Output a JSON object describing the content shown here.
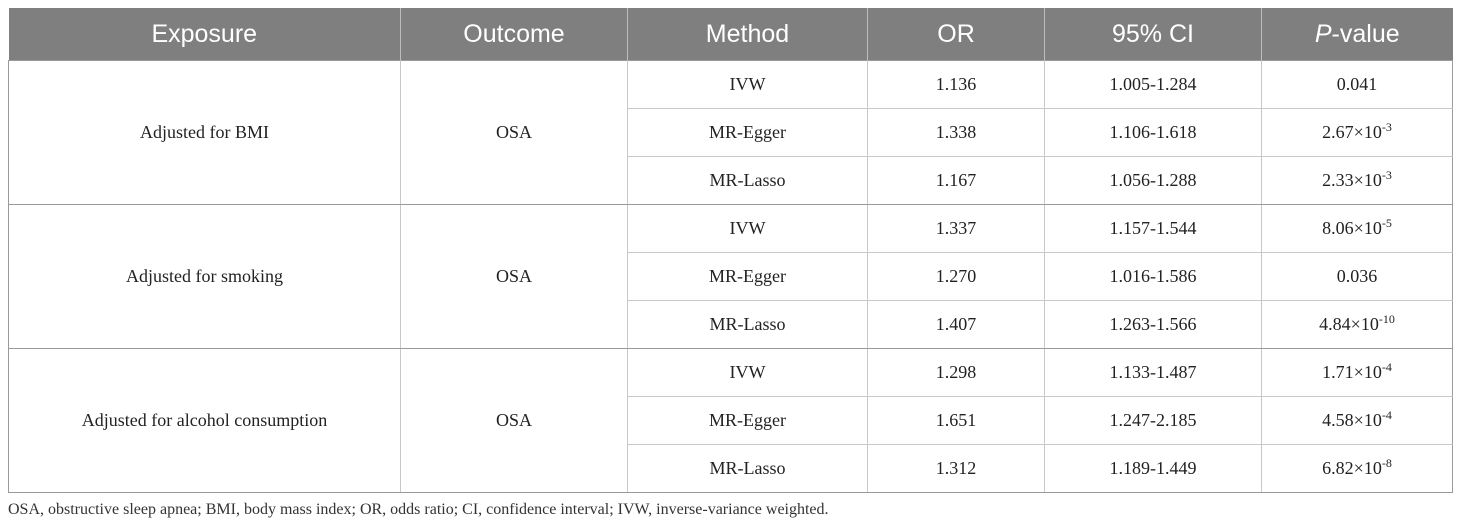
{
  "table": {
    "headers": {
      "exposure": "Exposure",
      "outcome": "Outcome",
      "method": "Method",
      "or": "OR",
      "ci": "95% CI",
      "p_italic": "P",
      "p_rest": "-value"
    },
    "groups": [
      {
        "exposure": "Adjusted for BMI",
        "outcome": "OSA",
        "rows": [
          {
            "method": "IVW",
            "or": "1.136",
            "ci": "1.005-1.284",
            "p_base": "0.041",
            "p_exp": ""
          },
          {
            "method": "MR-Egger",
            "or": "1.338",
            "ci": "1.106-1.618",
            "p_base": "2.67×10",
            "p_exp": "-3"
          },
          {
            "method": "MR-Lasso",
            "or": "1.167",
            "ci": "1.056-1.288",
            "p_base": "2.33×10",
            "p_exp": "-3"
          }
        ]
      },
      {
        "exposure": "Adjusted for smoking",
        "outcome": "OSA",
        "rows": [
          {
            "method": "IVW",
            "or": "1.337",
            "ci": "1.157-1.544",
            "p_base": "8.06×10",
            "p_exp": "-5"
          },
          {
            "method": "MR-Egger",
            "or": "1.270",
            "ci": "1.016-1.586",
            "p_base": "0.036",
            "p_exp": ""
          },
          {
            "method": "MR-Lasso",
            "or": "1.407",
            "ci": "1.263-1.566",
            "p_base": "4.84×10",
            "p_exp": "-10"
          }
        ]
      },
      {
        "exposure": "Adjusted for alcohol consumption",
        "outcome": "OSA",
        "rows": [
          {
            "method": "IVW",
            "or": "1.298",
            "ci": "1.133-1.487",
            "p_base": "1.71×10",
            "p_exp": "-4"
          },
          {
            "method": "MR-Egger",
            "or": "1.651",
            "ci": "1.247-2.185",
            "p_base": "4.58×10",
            "p_exp": "-4"
          },
          {
            "method": "MR-Lasso",
            "or": "1.312",
            "ci": "1.189-1.449",
            "p_base": "6.82×10",
            "p_exp": "-8"
          }
        ]
      }
    ]
  },
  "footnote": "OSA, obstructive sleep apnea; BMI, body mass index; OR, odds ratio; CI, confidence interval; IVW, inverse-variance weighted.",
  "colors": {
    "header_bg": "#7f7f7f",
    "header_text": "#ffffff",
    "border": "#c8c8c8"
  }
}
